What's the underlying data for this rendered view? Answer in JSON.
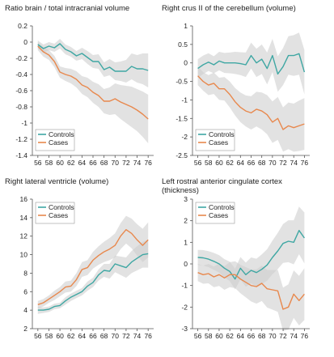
{
  "figure": {
    "panels_order": [
      "brain_ratio",
      "crus",
      "ventricle",
      "cingulate"
    ]
  },
  "colors": {
    "controls": "#3fa7a3",
    "cases": "#e8884d",
    "band": "#cfcfcf",
    "axis": "#555555"
  },
  "chart_data": [
    {
      "id": "brain_ratio",
      "type": "line",
      "title": [
        "Ratio brain / total intracranial volume"
      ],
      "xlabel": "",
      "ylabel": "",
      "xlim": [
        55,
        77
      ],
      "ylim": [
        -1.4,
        0.2
      ],
      "x_ticks": [
        56,
        58,
        60,
        62,
        64,
        66,
        68,
        70,
        72,
        74,
        76
      ],
      "y_ticks": [
        0.2,
        0,
        -0.2,
        -0.4,
        -0.6,
        -0.8,
        -1,
        -1.2,
        -1.4
      ],
      "y_tick_labels": [
        "0.2",
        "0",
        "-0.2",
        "-0.4",
        "-0.6",
        "-0.8",
        "-1",
        "-1.2",
        "-1.4"
      ],
      "grid": false,
      "legend": {
        "position": "bottom-left",
        "entries": [
          "Controls",
          "Cases"
        ]
      },
      "x": [
        56,
        57,
        58,
        59,
        60,
        61,
        62,
        63,
        64,
        65,
        66,
        67,
        68,
        69,
        70,
        71,
        72,
        73,
        74,
        75,
        76
      ],
      "series": [
        {
          "name": "Controls",
          "color": "#3fa7a3",
          "values": [
            -0.03,
            -0.08,
            -0.05,
            -0.07,
            -0.02,
            -0.09,
            -0.12,
            -0.17,
            -0.14,
            -0.19,
            -0.24,
            -0.24,
            -0.34,
            -0.31,
            -0.36,
            -0.36,
            -0.36,
            -0.3,
            -0.33,
            -0.33,
            -0.35
          ]
        },
        {
          "name": "Cases",
          "color": "#e8884d",
          "values": [
            -0.05,
            -0.12,
            -0.16,
            -0.24,
            -0.37,
            -0.4,
            -0.42,
            -0.46,
            -0.53,
            -0.56,
            -0.62,
            -0.66,
            -0.73,
            -0.73,
            -0.7,
            -0.74,
            -0.77,
            -0.8,
            -0.84,
            -0.89,
            -0.95
          ]
        }
      ],
      "bands": [
        {
          "series": "Controls",
          "lower": [
            -0.08,
            -0.13,
            -0.1,
            -0.12,
            -0.08,
            -0.15,
            -0.18,
            -0.23,
            -0.21,
            -0.27,
            -0.32,
            -0.33,
            -0.43,
            -0.41,
            -0.47,
            -0.48,
            -0.5,
            -0.46,
            -0.5,
            -0.52,
            -0.56
          ],
          "upper": [
            0.02,
            -0.03,
            0.0,
            -0.02,
            0.04,
            -0.03,
            -0.06,
            -0.11,
            -0.07,
            -0.11,
            -0.16,
            -0.15,
            -0.25,
            -0.21,
            -0.25,
            -0.24,
            -0.22,
            -0.14,
            -0.16,
            -0.14,
            -0.14
          ]
        },
        {
          "series": "Cases",
          "lower": [
            -0.1,
            -0.18,
            -0.22,
            -0.31,
            -0.44,
            -0.48,
            -0.51,
            -0.56,
            -0.64,
            -0.68,
            -0.75,
            -0.8,
            -0.88,
            -0.9,
            -0.89,
            -0.95,
            -1.0,
            -1.05,
            -1.1,
            -1.17,
            -1.25
          ],
          "upper": [
            0.0,
            -0.06,
            -0.1,
            -0.17,
            -0.3,
            -0.32,
            -0.33,
            -0.36,
            -0.42,
            -0.44,
            -0.49,
            -0.52,
            -0.58,
            -0.56,
            -0.51,
            -0.53,
            -0.54,
            -0.55,
            -0.58,
            -0.61,
            -0.65
          ]
        }
      ]
    },
    {
      "id": "crus",
      "type": "line",
      "title": [
        "Right crus II of the cerebellum (volume)"
      ],
      "xlabel": "",
      "ylabel": "",
      "xlim": [
        55,
        77
      ],
      "ylim": [
        -2.5,
        1
      ],
      "x_ticks": [
        56,
        58,
        60,
        62,
        64,
        66,
        68,
        70,
        72,
        74,
        76
      ],
      "y_ticks": [
        1,
        0.5,
        0,
        -0.5,
        -1,
        -1.5,
        -2,
        -2.5
      ],
      "y_tick_labels": [
        "1",
        "0.5",
        "0",
        "-0.5",
        "-1",
        "-1.5",
        "-2",
        "-2.5"
      ],
      "grid": false,
      "legend": {
        "position": "bottom-left",
        "entries": [
          "Controls",
          "Cases"
        ]
      },
      "x": [
        56,
        57,
        58,
        59,
        60,
        61,
        62,
        63,
        64,
        65,
        66,
        67,
        68,
        69,
        70,
        71,
        72,
        73,
        74,
        75,
        76
      ],
      "series": [
        {
          "name": "Controls",
          "color": "#3fa7a3",
          "values": [
            -0.15,
            -0.05,
            0.02,
            -0.05,
            0.05,
            0.0,
            0.0,
            0.0,
            -0.02,
            -0.05,
            0.2,
            0.0,
            0.1,
            -0.15,
            0.2,
            -0.3,
            -0.1,
            0.2,
            0.2,
            0.25,
            -0.25
          ]
        },
        {
          "name": "Cases",
          "color": "#e8884d",
          "values": [
            -0.35,
            -0.5,
            -0.6,
            -0.55,
            -0.7,
            -0.7,
            -0.85,
            -1.05,
            -1.2,
            -1.3,
            -1.35,
            -1.25,
            -1.3,
            -1.4,
            -1.6,
            -1.5,
            -1.8,
            -1.7,
            -1.75,
            -1.7,
            -1.65
          ]
        }
      ],
      "bands": [
        {
          "series": "Controls",
          "lower": [
            -0.4,
            -0.3,
            -0.22,
            -0.28,
            -0.2,
            -0.27,
            -0.28,
            -0.3,
            -0.33,
            -0.38,
            -0.15,
            -0.38,
            -0.3,
            -0.58,
            -0.25,
            -0.78,
            -0.6,
            -0.32,
            -0.35,
            -0.32,
            -0.85
          ],
          "upper": [
            0.1,
            0.2,
            0.26,
            0.18,
            0.3,
            0.27,
            0.28,
            0.3,
            0.29,
            0.28,
            0.55,
            0.38,
            0.5,
            0.28,
            0.65,
            0.18,
            0.4,
            0.72,
            0.75,
            0.82,
            0.35
          ]
        },
        {
          "series": "Cases",
          "lower": [
            -0.6,
            -0.75,
            -0.87,
            -0.84,
            -1.0,
            -1.02,
            -1.2,
            -1.42,
            -1.6,
            -1.72,
            -1.8,
            -1.72,
            -1.8,
            -1.93,
            -2.16,
            -2.08,
            -2.4,
            -2.33,
            -2.4,
            -2.38,
            -2.35
          ],
          "upper": [
            -0.1,
            -0.25,
            -0.33,
            -0.26,
            -0.4,
            -0.38,
            -0.5,
            -0.68,
            -0.8,
            -0.88,
            -0.9,
            -0.78,
            -0.8,
            -0.87,
            -1.04,
            -0.92,
            -1.2,
            -1.07,
            -1.1,
            -1.02,
            -0.95
          ]
        }
      ]
    },
    {
      "id": "ventricle",
      "type": "line",
      "title": [
        "Right lateral ventricle (volume)"
      ],
      "xlabel": "",
      "ylabel": "",
      "xlim": [
        55,
        77
      ],
      "ylim": [
        2,
        16
      ],
      "x_ticks": [
        56,
        58,
        60,
        62,
        64,
        66,
        68,
        70,
        72,
        74,
        76
      ],
      "y_ticks": [
        16,
        14,
        12,
        10,
        8,
        6,
        4,
        2
      ],
      "y_tick_labels": [
        "16",
        "14",
        "12",
        "10",
        "8",
        "6",
        "4",
        "2"
      ],
      "grid": false,
      "legend": {
        "position": "top-left",
        "entries": [
          "Controls",
          "Cases"
        ]
      },
      "x": [
        56,
        57,
        58,
        59,
        60,
        61,
        62,
        63,
        64,
        65,
        66,
        67,
        68,
        69,
        70,
        71,
        72,
        73,
        74,
        75,
        76
      ],
      "series": [
        {
          "name": "Controls",
          "color": "#3fa7a3",
          "values": [
            4.0,
            4.0,
            4.1,
            4.4,
            4.5,
            5.0,
            5.4,
            5.7,
            6.0,
            6.6,
            7.0,
            7.8,
            8.3,
            8.2,
            9.0,
            8.8,
            8.6,
            9.2,
            9.6,
            10.0,
            10.1
          ]
        },
        {
          "name": "Cases",
          "color": "#e8884d",
          "values": [
            4.6,
            4.8,
            5.2,
            5.6,
            6.0,
            6.5,
            6.6,
            7.3,
            8.4,
            8.6,
            9.4,
            9.9,
            10.3,
            10.6,
            11.0,
            12.0,
            12.7,
            12.3,
            11.6,
            11.0,
            11.6
          ]
        }
      ],
      "bands": [
        {
          "series": "Controls",
          "lower": [
            3.6,
            3.7,
            3.8,
            4.1,
            4.2,
            4.6,
            5.0,
            5.3,
            5.6,
            6.1,
            6.5,
            7.2,
            7.6,
            7.4,
            8.1,
            7.8,
            7.5,
            8.0,
            8.3,
            8.6,
            8.6
          ],
          "upper": [
            4.4,
            4.3,
            4.4,
            4.7,
            4.8,
            5.4,
            5.8,
            6.1,
            6.4,
            7.1,
            7.5,
            8.4,
            9.0,
            9.0,
            9.9,
            9.8,
            9.7,
            10.4,
            10.9,
            11.4,
            11.6
          ]
        },
        {
          "series": "Cases",
          "lower": [
            4.2,
            4.4,
            4.8,
            5.1,
            5.5,
            5.9,
            6.0,
            6.6,
            7.6,
            7.8,
            8.5,
            8.9,
            9.2,
            9.4,
            9.7,
            10.6,
            11.2,
            10.7,
            9.9,
            9.2,
            9.7
          ],
          "upper": [
            5.0,
            5.2,
            5.6,
            6.1,
            6.5,
            7.1,
            7.2,
            8.0,
            9.2,
            9.4,
            10.3,
            10.9,
            11.4,
            11.8,
            12.3,
            13.4,
            14.2,
            13.9,
            13.3,
            12.8,
            13.5
          ]
        }
      ]
    },
    {
      "id": "cingulate",
      "type": "line",
      "title": [
        "Left rostral anterior cingulate cortex",
        "(thickness)"
      ],
      "xlabel": "",
      "ylabel": "",
      "xlim": [
        55,
        77
      ],
      "ylim": [
        -3,
        3
      ],
      "x_ticks": [
        56,
        58,
        60,
        62,
        64,
        66,
        68,
        70,
        72,
        74,
        76
      ],
      "y_ticks": [
        3,
        2,
        1,
        0,
        -1,
        -2,
        -3
      ],
      "y_tick_labels": [
        "3",
        "2",
        "1",
        "0",
        "-1",
        "-2",
        "-3"
      ],
      "grid": false,
      "legend": {
        "position": "top-left",
        "entries": [
          "Controls",
          "Cases"
        ]
      },
      "x": [
        56,
        57,
        58,
        59,
        60,
        61,
        62,
        63,
        64,
        65,
        66,
        67,
        68,
        69,
        70,
        71,
        72,
        73,
        74,
        75,
        76
      ],
      "series": [
        {
          "name": "Controls",
          "color": "#3fa7a3",
          "values": [
            0.3,
            0.28,
            0.22,
            0.12,
            0.0,
            -0.2,
            -0.35,
            -0.7,
            -0.2,
            -0.5,
            -0.3,
            -0.4,
            -0.25,
            -0.05,
            0.3,
            0.6,
            0.95,
            1.05,
            1.0,
            1.55,
            1.2
          ]
        },
        {
          "name": "Cases",
          "color": "#e8884d",
          "values": [
            -0.4,
            -0.5,
            -0.45,
            -0.6,
            -0.5,
            -0.65,
            -0.5,
            -0.5,
            -0.7,
            -0.85,
            -1.0,
            -1.05,
            -0.9,
            -1.15,
            -1.2,
            -1.25,
            -2.1,
            -2.0,
            -1.4,
            -1.7,
            -1.4
          ]
        }
      ],
      "bands": [
        {
          "series": "Controls",
          "lower": [
            -0.05,
            -0.08,
            -0.15,
            -0.27,
            -0.4,
            -0.62,
            -0.8,
            -1.18,
            -0.72,
            -1.06,
            -0.9,
            -1.04,
            -0.94,
            -0.78,
            -0.48,
            -0.24,
            0.05,
            0.08,
            -0.02,
            0.45,
            0.02
          ],
          "upper": [
            0.65,
            0.64,
            0.59,
            0.51,
            0.4,
            0.22,
            0.1,
            -0.22,
            0.32,
            0.06,
            0.3,
            0.24,
            0.44,
            0.68,
            1.08,
            1.44,
            1.85,
            2.02,
            2.02,
            2.65,
            2.38
          ]
        },
        {
          "series": "Cases",
          "lower": [
            -0.8,
            -0.92,
            -0.9,
            -1.08,
            -1.02,
            -1.2,
            -1.08,
            -1.12,
            -1.36,
            -1.55,
            -1.74,
            -1.84,
            -1.72,
            -2.02,
            -2.12,
            -2.22,
            -3.1,
            -3.05,
            -2.5,
            -2.85,
            -2.6
          ],
          "upper": [
            0.0,
            -0.08,
            0.0,
            -0.12,
            0.02,
            -0.1,
            0.08,
            0.12,
            -0.04,
            -0.15,
            -0.26,
            -0.26,
            -0.08,
            -0.28,
            -0.28,
            -0.28,
            -1.1,
            -0.95,
            -0.3,
            -0.55,
            -0.2
          ]
        }
      ]
    }
  ]
}
